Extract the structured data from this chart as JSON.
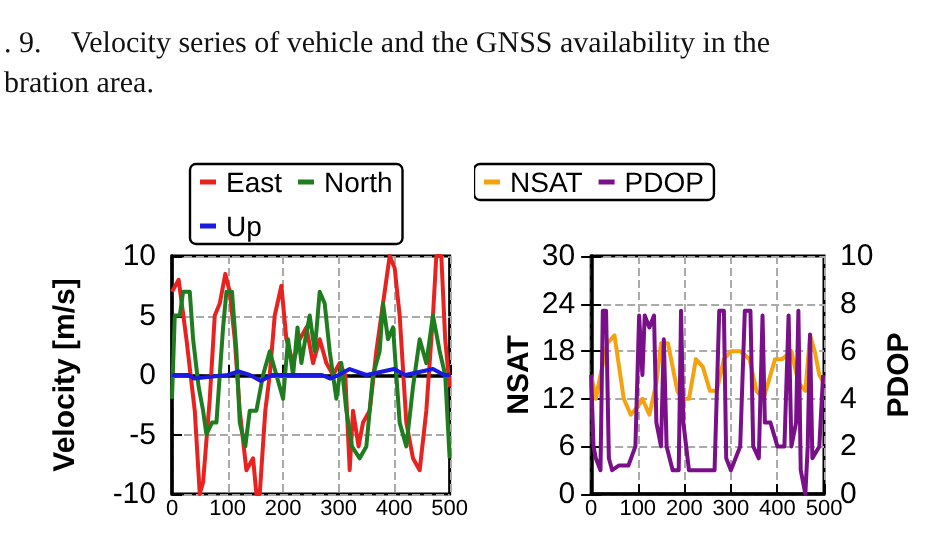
{
  "chart_data": [
    {
      "type": "line",
      "ylabel": "Velocity [m/s]",
      "annotations": [
        ". 9.    Velocity series of vehicle and the GNSS availability in the",
        "bration area."
      ],
      "xlim": [
        0,
        500
      ],
      "xticks": [
        0,
        100,
        200,
        300,
        400,
        500
      ],
      "ylim": [
        -10,
        10
      ],
      "yticks": [
        -10,
        -5,
        0,
        5,
        10
      ],
      "grid": true,
      "legend": "top",
      "marker": "none",
      "line_style": "solid",
      "series": [
        {
          "name": "East",
          "color": "#e8231f",
          "x": [
            0,
            12,
            26,
            41,
            50,
            56,
            68,
            77,
            86,
            96,
            104,
            113,
            122,
            134,
            146,
            152,
            158,
            168,
            176,
            185,
            197,
            206,
            218,
            230,
            242,
            254,
            266,
            278,
            290,
            302,
            312,
            320,
            326,
            336,
            344,
            356,
            368,
            380,
            392,
            401,
            410,
            422,
            434,
            446,
            458,
            470,
            476,
            485,
            492,
            500
          ],
          "values": [
            7,
            8,
            3,
            -3,
            -10,
            -9,
            -2,
            5,
            6,
            8.5,
            7,
            3,
            -3,
            -8,
            -7,
            -10,
            -10,
            -3,
            0,
            5,
            7.5,
            3,
            1,
            3,
            4,
            1,
            3,
            1,
            0,
            1,
            0,
            -8,
            -3,
            -6,
            -4,
            -3,
            2,
            6,
            10,
            9,
            5,
            -4,
            -7,
            -8,
            -3,
            5,
            10,
            10,
            3,
            -1
          ]
        },
        {
          "name": "North",
          "color": "#1f7d1f",
          "x": [
            0,
            5,
            14,
            20,
            32,
            38,
            48,
            56,
            62,
            72,
            80,
            86,
            92,
            98,
            108,
            116,
            122,
            132,
            140,
            152,
            164,
            176,
            188,
            200,
            209,
            218,
            226,
            233,
            240,
            248,
            257,
            266,
            275,
            284,
            296,
            305,
            314,
            324,
            338,
            350,
            362,
            374,
            380,
            389,
            398,
            410,
            422,
            434,
            446,
            458,
            470,
            482,
            492,
            500
          ],
          "values": [
            -2,
            5,
            5,
            7,
            7,
            3,
            -1,
            -3,
            -5,
            -4,
            -4,
            0,
            4,
            7,
            7,
            2,
            -4,
            -6,
            -3,
            -3,
            0,
            2,
            0,
            -2,
            3,
            0,
            4,
            1,
            3,
            5,
            2,
            7,
            6,
            2,
            -2,
            1,
            -3,
            -6,
            -7,
            -6,
            0,
            2,
            6,
            3,
            4,
            -4,
            -6,
            -1,
            3,
            1,
            5,
            2,
            0,
            -7
          ]
        },
        {
          "name": "Up",
          "color": "#1a1ae0",
          "x": [
            0,
            30,
            40,
            60,
            100,
            120,
            140,
            160,
            180,
            220,
            270,
            285,
            300,
            320,
            350,
            400,
            420,
            470,
            490,
            500
          ],
          "values": [
            0,
            0,
            -0.3,
            -0.2,
            0,
            0.3,
            0,
            -0.5,
            0,
            0,
            0,
            -0.3,
            0,
            0.5,
            0,
            0.5,
            0,
            0.5,
            0,
            0
          ]
        }
      ]
    },
    {
      "type": "line",
      "ylabel": "NSAT",
      "y2label": "PDOP",
      "xlim": [
        0,
        500
      ],
      "xticks": [
        0,
        100,
        200,
        300,
        400,
        500
      ],
      "ylim": [
        0,
        30
      ],
      "yticks": [
        0,
        6,
        12,
        18,
        24,
        30
      ],
      "y2lim": [
        0,
        10
      ],
      "y2ticks": [
        0,
        2,
        4,
        6,
        8,
        10
      ],
      "grid": true,
      "legend": "top",
      "marker": "none",
      "line_style": "solid",
      "series": [
        {
          "name": "NSAT",
          "color": "#f5a20f",
          "x": [
            0,
            10,
            20,
            35,
            50,
            60,
            70,
            85,
            100,
            110,
            125,
            140,
            150,
            165,
            175,
            185,
            195,
            210,
            225,
            240,
            255,
            270,
            285,
            300,
            320,
            340,
            355,
            370,
            380,
            395,
            410,
            430,
            445,
            460,
            470,
            480,
            490,
            500
          ],
          "values": [
            15,
            12,
            15,
            19,
            20,
            16,
            12,
            10,
            11,
            12,
            10,
            14,
            19,
            19,
            16,
            13,
            12,
            12,
            17,
            16,
            13,
            13,
            17,
            18,
            18,
            17,
            13,
            12,
            14,
            17,
            17,
            18,
            14,
            13,
            20,
            18,
            15,
            14
          ]
        },
        {
          "name": "PDOP",
          "color": "#7a0f8a",
          "axis": "y2",
          "x": [
            0,
            5,
            10,
            20,
            25,
            32,
            38,
            45,
            60,
            80,
            95,
            103,
            110,
            115,
            125,
            135,
            140,
            150,
            156,
            162,
            175,
            188,
            193,
            198,
            210,
            240,
            265,
            275,
            285,
            290,
            300,
            320,
            330,
            342,
            348,
            360,
            368,
            373,
            385,
            400,
            415,
            424,
            430,
            440,
            445,
            450,
            460,
            465,
            470,
            475,
            490,
            498,
            500
          ],
          "values": [
            5,
            2,
            1.5,
            1,
            7.7,
            7.7,
            1.5,
            1,
            1.2,
            1.2,
            2,
            7.5,
            5,
            7.5,
            7,
            7.5,
            3,
            2,
            6.5,
            2,
            1,
            1,
            7.7,
            3,
            1,
            1,
            1,
            7.7,
            7.7,
            1.5,
            1,
            2,
            7.7,
            7.7,
            2,
            1.5,
            7.5,
            3,
            3,
            2,
            2,
            7.5,
            2,
            3,
            7.7,
            1,
            0,
            2,
            6.7,
            1.5,
            2,
            5,
            5
          ]
        }
      ]
    }
  ]
}
